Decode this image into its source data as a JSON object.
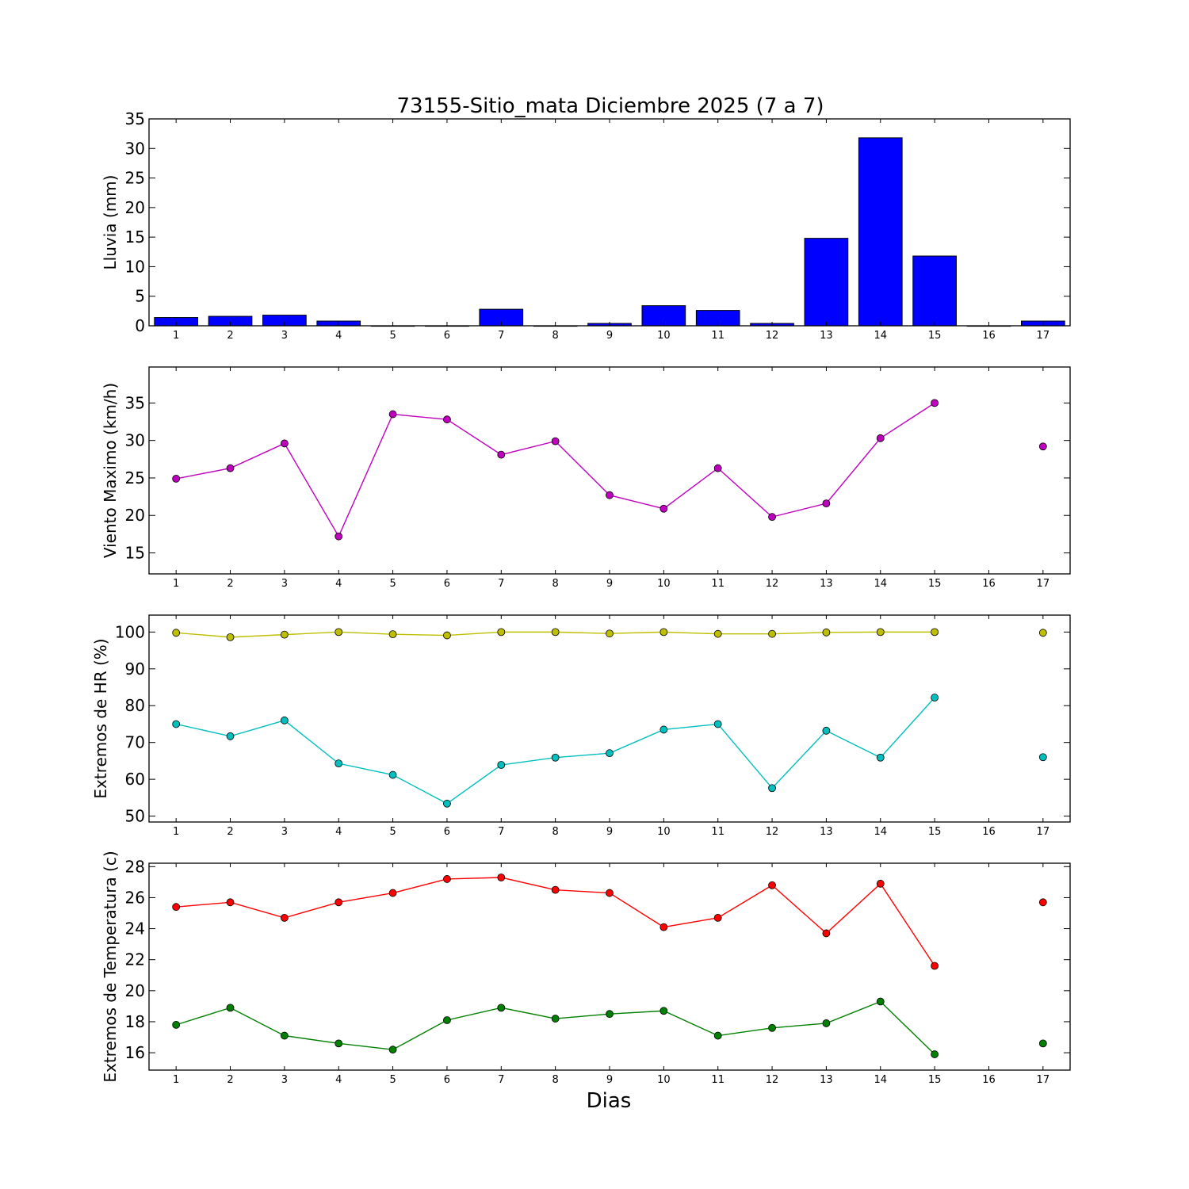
{
  "title": "73155-Sitio_mata Diciembre 2025  (7 a 7)",
  "xlabel": "Dias",
  "chart_data": [
    {
      "type": "bar",
      "ylabel": "Lluvia (mm)",
      "x": [
        1,
        2,
        3,
        4,
        5,
        6,
        7,
        8,
        9,
        10,
        11,
        12,
        13,
        14,
        15,
        16,
        17
      ],
      "xticks": [
        1,
        2,
        3,
        4,
        5,
        6,
        7,
        8,
        9,
        10,
        11,
        12,
        13,
        14,
        15,
        16,
        17
      ],
      "xlim": [
        0.5,
        17.5
      ],
      "ylim": [
        0,
        35
      ],
      "yticks": [
        0,
        5,
        10,
        15,
        20,
        25,
        30,
        35
      ],
      "series": [
        {
          "color": "#0000ff",
          "values": [
            1.4,
            1.6,
            1.8,
            0.8,
            0.0,
            0.0,
            2.8,
            0.0,
            0.4,
            3.4,
            2.6,
            0.4,
            14.8,
            31.8,
            11.8,
            0.0,
            0.8
          ]
        }
      ]
    },
    {
      "type": "line",
      "ylabel": "Viento Maximo (km/h)",
      "x": [
        1,
        2,
        3,
        4,
        5,
        6,
        7,
        8,
        9,
        10,
        11,
        12,
        13,
        14,
        15,
        16,
        17
      ],
      "xticks": [
        1,
        2,
        3,
        4,
        5,
        6,
        7,
        8,
        9,
        10,
        11,
        12,
        13,
        14,
        15,
        16,
        17
      ],
      "xlim": [
        0.5,
        17.5
      ],
      "ylim": [
        12.2,
        39.8
      ],
      "yticks": [
        15,
        20,
        25,
        30,
        35
      ],
      "series": [
        {
          "color": "#bf00bf",
          "values": [
            24.9,
            26.3,
            29.6,
            17.2,
            33.5,
            32.8,
            28.1,
            29.9,
            22.7,
            20.9,
            26.3,
            19.8,
            21.6,
            30.3,
            35.0,
            null,
            29.2
          ]
        }
      ]
    },
    {
      "type": "line",
      "ylabel": "Extremos de HR (%)",
      "x": [
        1,
        2,
        3,
        4,
        5,
        6,
        7,
        8,
        9,
        10,
        11,
        12,
        13,
        14,
        15,
        16,
        17
      ],
      "xticks": [
        1,
        2,
        3,
        4,
        5,
        6,
        7,
        8,
        9,
        10,
        11,
        12,
        13,
        14,
        15,
        16,
        17
      ],
      "xlim": [
        0.5,
        17.5
      ],
      "ylim": [
        48.4,
        104.6
      ],
      "yticks": [
        50,
        60,
        70,
        80,
        90,
        100
      ],
      "series": [
        {
          "color": "#bfbf00",
          "values": [
            99.8,
            98.6,
            99.3,
            100.0,
            99.4,
            99.1,
            100.0,
            100.0,
            99.6,
            100.0,
            99.5,
            99.5,
            99.9,
            100.0,
            100.0,
            null,
            99.8
          ]
        },
        {
          "color": "#00bfbf",
          "values": [
            75.0,
            71.7,
            76.0,
            64.3,
            61.2,
            53.4,
            63.9,
            65.9,
            67.1,
            73.5,
            75.0,
            57.6,
            73.2,
            65.9,
            82.2,
            null,
            66.0
          ]
        }
      ]
    },
    {
      "type": "line",
      "ylabel": "Extremos de Temperatura (c)",
      "x": [
        1,
        2,
        3,
        4,
        5,
        6,
        7,
        8,
        9,
        10,
        11,
        12,
        13,
        14,
        15,
        16,
        17
      ],
      "xticks": [
        1,
        2,
        3,
        4,
        5,
        6,
        7,
        8,
        9,
        10,
        11,
        12,
        13,
        14,
        15,
        16,
        17
      ],
      "xlim": [
        0.5,
        17.5
      ],
      "ylim": [
        14.88,
        28.22
      ],
      "yticks": [
        16,
        18,
        20,
        22,
        24,
        26,
        28
      ],
      "series": [
        {
          "color": "#ff0000",
          "values": [
            25.4,
            25.7,
            24.7,
            25.7,
            26.3,
            27.2,
            27.3,
            26.5,
            26.3,
            24.1,
            24.7,
            26.8,
            23.7,
            26.9,
            21.6,
            null,
            25.7
          ]
        },
        {
          "color": "#008000",
          "values": [
            17.8,
            18.9,
            17.1,
            16.6,
            16.2,
            18.1,
            18.9,
            18.2,
            18.5,
            18.7,
            17.1,
            17.6,
            17.9,
            19.3,
            15.9,
            null,
            16.6
          ]
        }
      ]
    }
  ]
}
